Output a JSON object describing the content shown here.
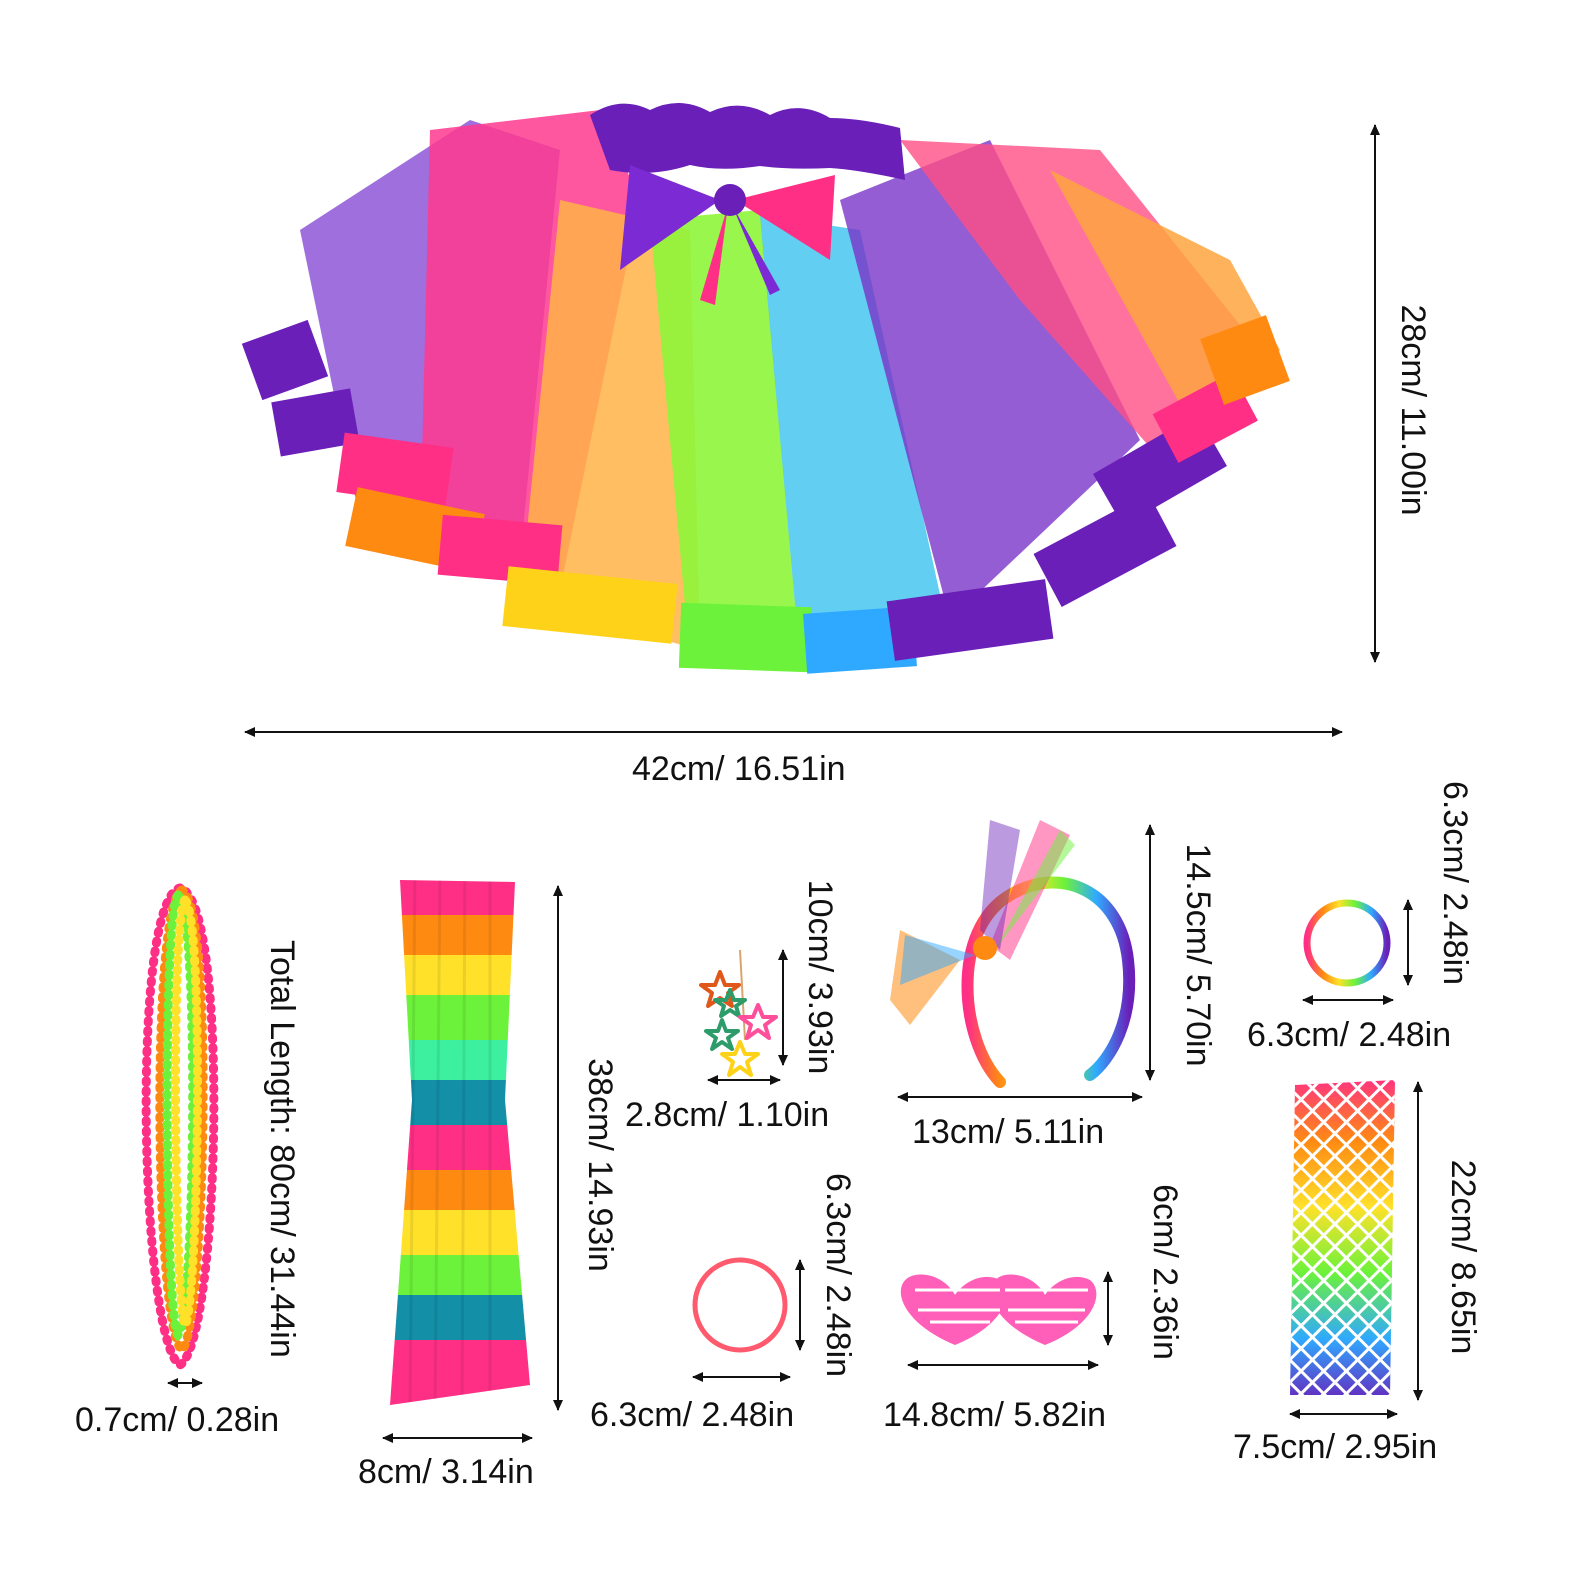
{
  "tutu": {
    "width": "42cm/ 16.51in",
    "height": "28cm/ 11.00in"
  },
  "necklace": {
    "length": "Total Length: 80cm/ 31.44in",
    "bead": "0.7cm/ 0.28in"
  },
  "leg_warmer": {
    "length": "38cm/ 14.93in",
    "width": "8cm/ 3.14in"
  },
  "earrings": {
    "length": "10cm/ 3.93in",
    "width": "2.8cm/ 1.10in"
  },
  "headband": {
    "height": "14.5cm/ 5.70in",
    "width": "13cm/ 5.11in"
  },
  "bracelet_rainbow": {
    "height": "6.3cm/ 2.48in",
    "width": "6.3cm/ 2.48in"
  },
  "bracelet_pink": {
    "height": "6.3cm/ 2.48in",
    "width": "6.3cm/ 2.48in"
  },
  "glasses": {
    "height": "6cm/ 2.36in",
    "width": "14.8cm/ 5.82in"
  },
  "fishnet_gloves": {
    "length": "22cm/ 8.65in",
    "width": "7.5cm/ 2.95in"
  },
  "colors": {
    "purple": "#6a1fb8",
    "pink": "#ff2f86",
    "orange": "#ff8a12",
    "yellow": "#ffe12a",
    "green": "#6cf23a",
    "blue": "#2fa9ff",
    "teal": "#138fa8",
    "neon_orange": "#ff7a1c"
  }
}
